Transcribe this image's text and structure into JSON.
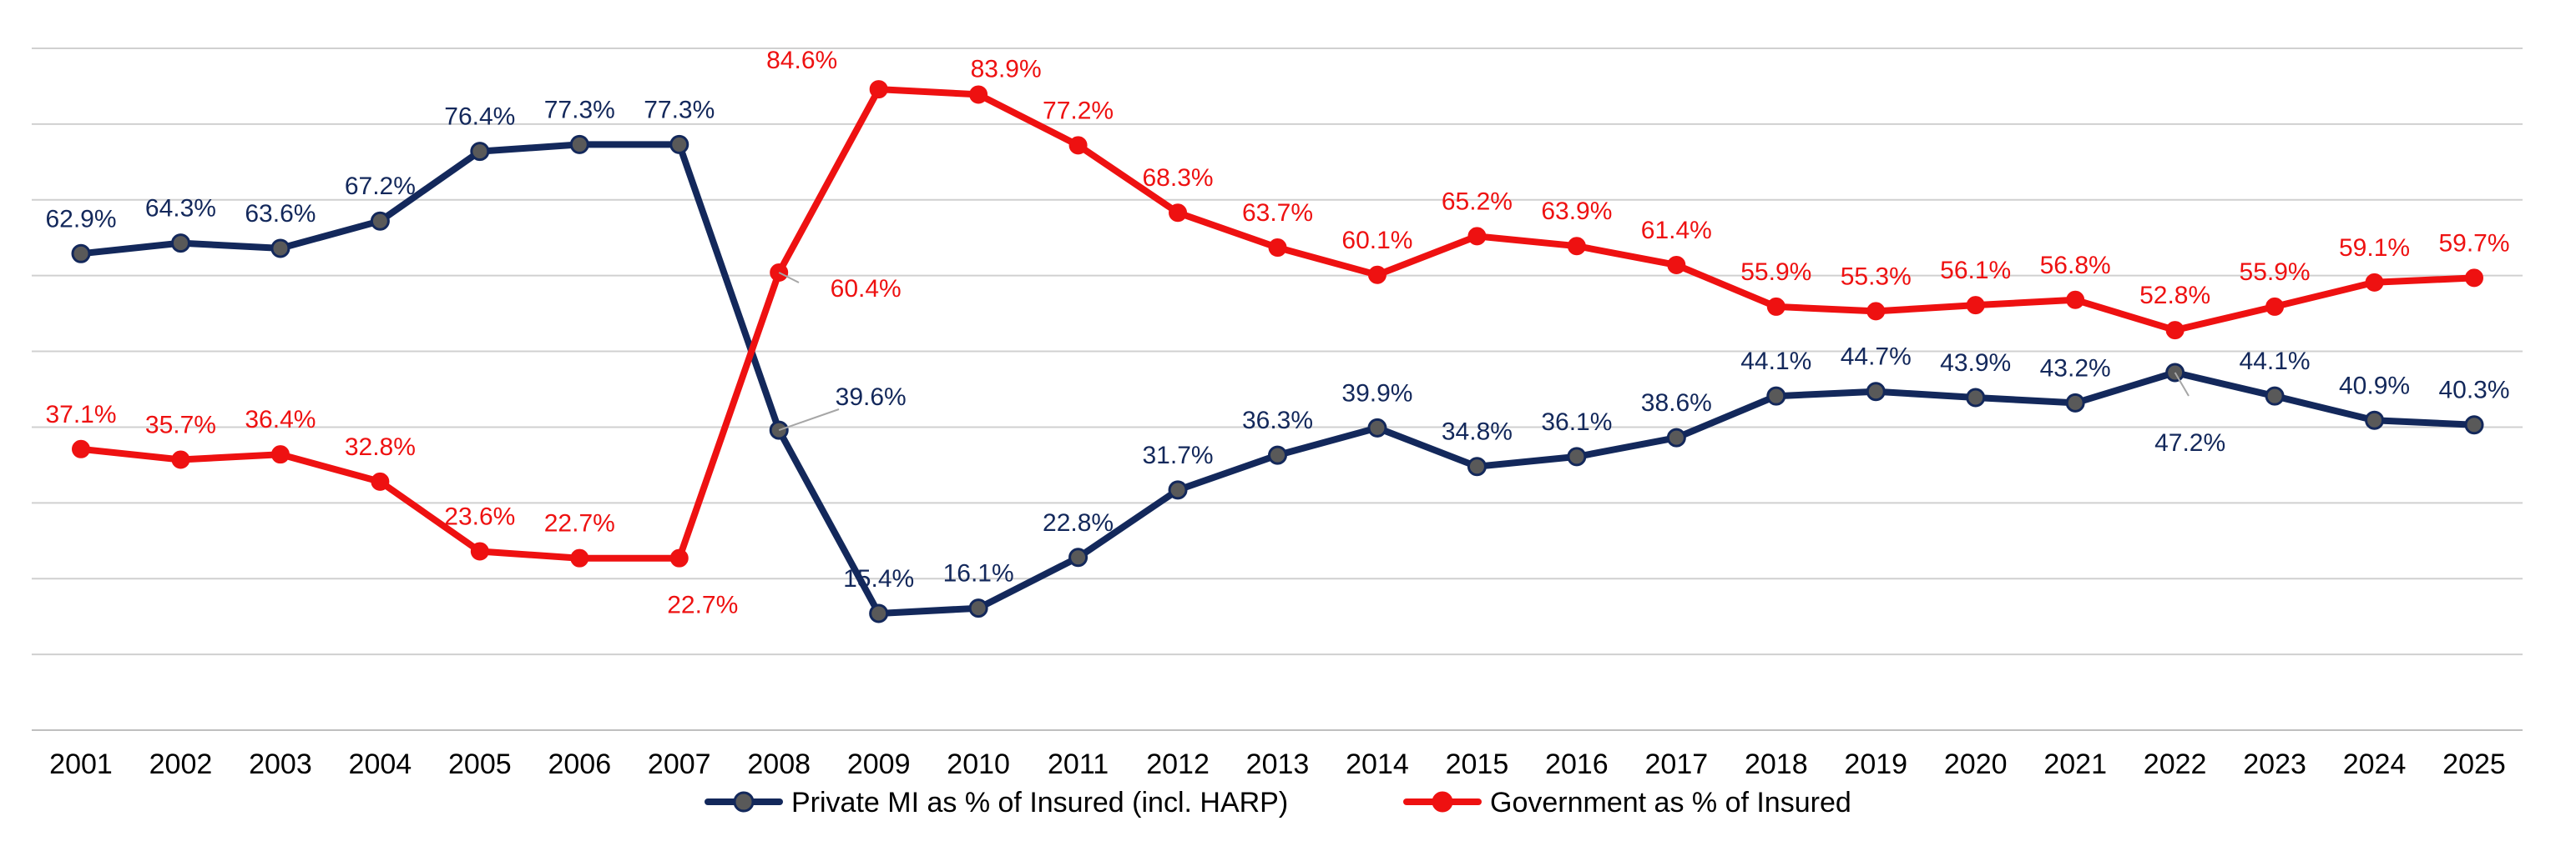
{
  "chart_data": {
    "type": "line",
    "x": [
      "2001",
      "2002",
      "2003",
      "2004",
      "2005",
      "2006",
      "2007",
      "2008",
      "2009",
      "2010",
      "2011",
      "2012",
      "2013",
      "2014",
      "2015",
      "2016",
      "2017",
      "2018",
      "2019",
      "2020",
      "2021",
      "2022",
      "2023",
      "2024",
      "2025"
    ],
    "ylim": [
      0,
      90
    ],
    "grid": true,
    "legend_position": "bottom",
    "series": [
      {
        "name": "Private MI as % of Insured (incl. HARP)",
        "color": "#13285B",
        "marker_color": "#595959",
        "values": [
          62.9,
          64.3,
          63.6,
          67.2,
          76.4,
          77.3,
          77.3,
          39.6,
          15.4,
          16.1,
          22.8,
          31.7,
          36.3,
          39.9,
          34.8,
          36.1,
          38.6,
          44.1,
          44.7,
          43.9,
          43.2,
          47.2,
          44.1,
          40.9,
          40.3
        ],
        "labels": [
          "62.9%",
          "64.3%",
          "63.6%",
          "67.2%",
          "76.4%",
          "77.3%",
          "77.3%",
          "39.6%",
          "15.4%",
          "16.1%",
          "22.8%",
          "31.7%",
          "36.3%",
          "39.9%",
          "34.8%",
          "36.1%",
          "38.6%",
          "44.1%",
          "44.7%",
          "43.9%",
          "43.2%",
          "47.2%",
          "44.1%",
          "40.9%",
          "40.3%"
        ]
      },
      {
        "name": "Government as % of Insured",
        "color": "#EE1111",
        "marker_color": "#EE1111",
        "values": [
          37.1,
          35.7,
          36.4,
          32.8,
          23.6,
          22.7,
          22.7,
          60.4,
          84.6,
          83.9,
          77.2,
          68.3,
          63.7,
          60.1,
          65.2,
          63.9,
          61.4,
          55.9,
          55.3,
          56.1,
          56.8,
          52.8,
          55.9,
          59.1,
          59.7
        ],
        "labels": [
          "37.1%",
          "35.7%",
          "36.4%",
          "32.8%",
          "23.6%",
          "22.7%",
          "22.7%",
          "60.4%",
          "84.6%",
          "83.9%",
          "77.2%",
          "68.3%",
          "63.7%",
          "60.1%",
          "65.2%",
          "63.9%",
          "61.4%",
          "55.9%",
          "55.3%",
          "56.1%",
          "56.8%",
          "52.8%",
          "55.9%",
          "59.1%",
          "59.7%"
        ]
      }
    ]
  }
}
